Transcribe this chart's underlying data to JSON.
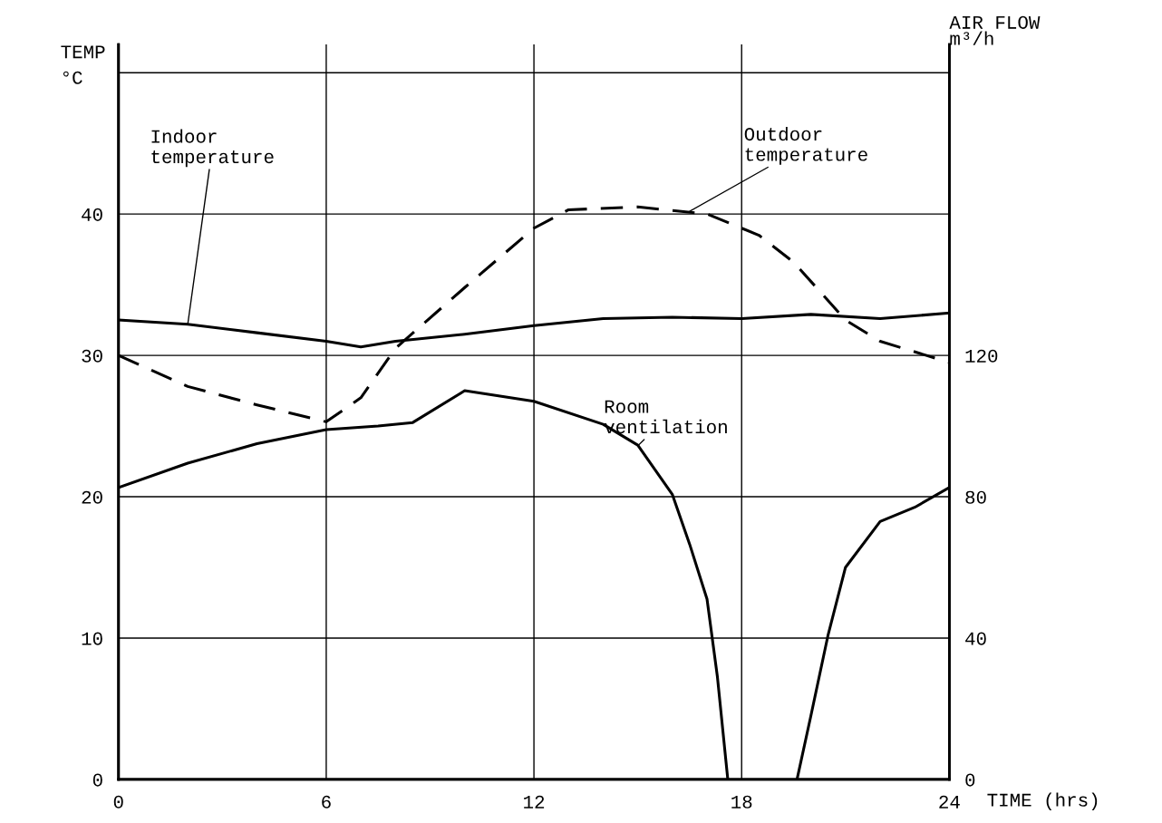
{
  "chart_data": {
    "type": "line",
    "xlabel": "TIME (hrs)",
    "ylabel": "TEMP\n°C",
    "y2label": "AIR FLOW\nm³/h",
    "xlim": [
      0,
      24
    ],
    "xticks": [
      0,
      6,
      12,
      18,
      24
    ],
    "ylim": [
      0,
      52
    ],
    "yticks": [
      0,
      10,
      20,
      30,
      40,
      {
        "value": 50,
        "label": null
      }
    ],
    "y2lim": [
      0,
      208
    ],
    "y2ticks": [
      0,
      40,
      80,
      120
    ],
    "grid": true,
    "legend": false,
    "series": [
      {
        "color": "#000000",
        "line_style": "solid",
        "x": [
          0,
          2,
          4,
          6,
          7,
          8,
          10,
          12,
          14,
          16,
          18,
          20,
          22,
          24
        ],
        "values": [
          32.5,
          32.2,
          31.6,
          31.0,
          30.6,
          31.0,
          31.5,
          32.1,
          32.6,
          32.7,
          32.6,
          32.9,
          32.6,
          33.0
        ]
      },
      {
        "color": "#000000",
        "line_style": "dashed",
        "x": [
          0,
          2,
          4,
          6,
          7,
          8,
          10,
          12,
          13,
          15,
          17,
          18.5,
          19.5,
          21,
          22,
          24
        ],
        "values": [
          30,
          27.8,
          26.5,
          25.3,
          27.0,
          30.5,
          34.8,
          39.0,
          40.3,
          40.5,
          40.0,
          38.5,
          36.6,
          32.5,
          31.0,
          29.5
        ]
      },
      {
        "color": "#000000",
        "line_style": "solid",
        "axis": "y2",
        "x": [
          0,
          2,
          4,
          6,
          7.5,
          8.5,
          10,
          12,
          14,
          15,
          16,
          16.5,
          17,
          17.3,
          17.6,
          18.6,
          19.6,
          20,
          20.5,
          21,
          22,
          23,
          24
        ],
        "values": [
          82.6,
          89.5,
          95,
          99,
          100,
          101,
          110,
          107,
          100.5,
          94.6,
          80.6,
          66.5,
          51,
          29,
          0,
          null,
          0,
          18,
          41,
          60,
          73,
          77,
          82.6
        ]
      }
    ],
    "annotations": [
      {
        "text": "Indoor\ntemperature",
        "x": 2,
        "y": 32.2
      },
      {
        "text": "Outdoor\ntemperature",
        "x": 16.5,
        "y": 40.2
      },
      {
        "text": "Room\nventilation",
        "x": 15,
        "y": 23.6
      }
    ]
  }
}
